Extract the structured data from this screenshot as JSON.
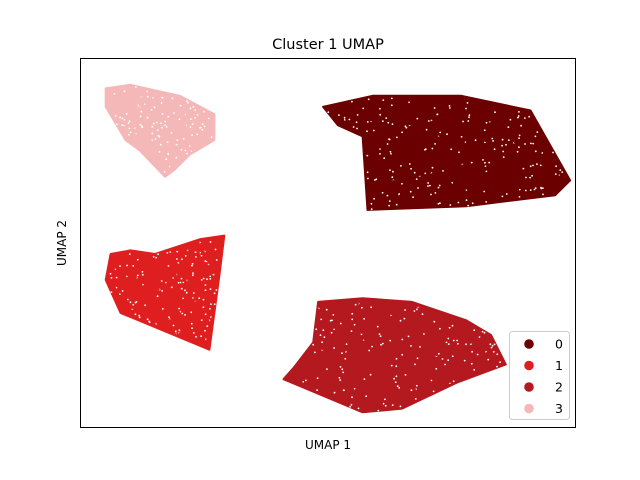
{
  "chart_data": {
    "type": "scatter",
    "title": "Cluster 1 UMAP",
    "xlabel": "UMAP 1",
    "ylabel": "UMAP 2",
    "xlim": [
      0,
      10
    ],
    "ylim": [
      0,
      10
    ],
    "grid": false,
    "legend": {
      "placement": "bottom-right"
    },
    "ticks_shown": false,
    "series": [
      {
        "name": "0",
        "color": "#6b0000",
        "region": [
          [
            4.9,
            8.7
          ],
          [
            5.9,
            9.0
          ],
          [
            7.7,
            9.0
          ],
          [
            9.1,
            8.6
          ],
          [
            9.9,
            6.7
          ],
          [
            9.6,
            6.3
          ],
          [
            7.8,
            6.0
          ],
          [
            5.8,
            5.9
          ],
          [
            5.7,
            7.9
          ],
          [
            5.2,
            8.2
          ]
        ],
        "n_points": 1400
      },
      {
        "name": "1",
        "color": "#df1f1f",
        "region": [
          [
            0.6,
            4.7
          ],
          [
            1.0,
            4.8
          ],
          [
            1.5,
            4.7
          ],
          [
            2.4,
            5.1
          ],
          [
            2.9,
            5.2
          ],
          [
            2.8,
            4.1
          ],
          [
            2.6,
            2.1
          ],
          [
            0.8,
            3.1
          ],
          [
            0.5,
            4.0
          ]
        ],
        "n_points": 1000
      },
      {
        "name": "2",
        "color": "#b3191f",
        "region": [
          [
            4.8,
            3.4
          ],
          [
            5.7,
            3.5
          ],
          [
            6.7,
            3.4
          ],
          [
            7.8,
            2.9
          ],
          [
            8.3,
            2.5
          ],
          [
            8.6,
            1.7
          ],
          [
            7.6,
            1.2
          ],
          [
            6.5,
            0.5
          ],
          [
            5.7,
            0.4
          ],
          [
            4.1,
            1.3
          ],
          [
            4.3,
            1.6
          ],
          [
            4.7,
            2.3
          ]
        ],
        "n_points": 1200
      },
      {
        "name": "3",
        "color": "#f5b8b8",
        "region": [
          [
            0.5,
            9.2
          ],
          [
            1.0,
            9.3
          ],
          [
            2.0,
            9.0
          ],
          [
            2.7,
            8.5
          ],
          [
            2.7,
            7.8
          ],
          [
            2.2,
            7.4
          ],
          [
            1.9,
            7.0
          ],
          [
            1.7,
            6.8
          ],
          [
            1.2,
            7.5
          ],
          [
            0.9,
            7.8
          ],
          [
            0.5,
            8.7
          ]
        ],
        "n_points": 700
      }
    ]
  }
}
